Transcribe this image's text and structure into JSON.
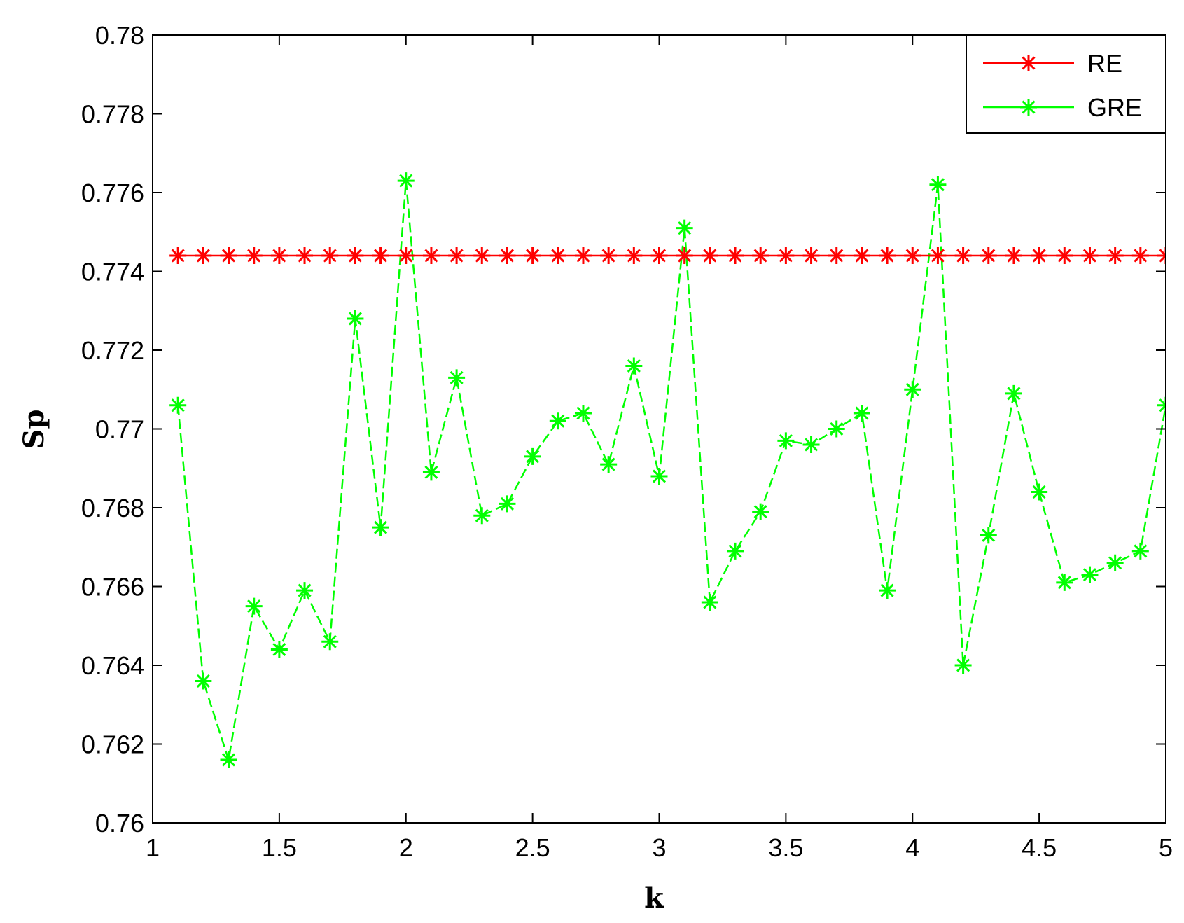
{
  "chart_data": {
    "type": "line",
    "title": "",
    "xlabel": "k",
    "ylabel": "Sp",
    "xlim": [
      1,
      5
    ],
    "ylim": [
      0.76,
      0.78
    ],
    "xticks": [
      "1",
      "1.5",
      "2",
      "2.5",
      "3",
      "3.5",
      "4",
      "4.5",
      "5"
    ],
    "yticks": [
      "0.76",
      "0.762",
      "0.764",
      "0.766",
      "0.768",
      "0.77",
      "0.772",
      "0.774",
      "0.776",
      "0.778",
      "0.78"
    ],
    "grid": false,
    "legend_position": "top-right",
    "x": [
      1.1,
      1.2,
      1.3,
      1.4,
      1.5,
      1.6,
      1.7,
      1.8,
      1.9,
      2.0,
      2.1,
      2.2,
      2.3,
      2.4,
      2.5,
      2.6,
      2.7,
      2.8,
      2.9,
      3.0,
      3.1,
      3.2,
      3.3,
      3.4,
      3.5,
      3.6,
      3.7,
      3.8,
      3.9,
      4.0,
      4.1,
      4.2,
      4.3,
      4.4,
      4.5,
      4.6,
      4.7,
      4.8,
      4.9,
      5.0
    ],
    "series": [
      {
        "name": "RE",
        "color": "#ff0000",
        "line_style": "solid",
        "marker": "star",
        "values": [
          0.7744,
          0.7744,
          0.7744,
          0.7744,
          0.7744,
          0.7744,
          0.7744,
          0.7744,
          0.7744,
          0.7744,
          0.7744,
          0.7744,
          0.7744,
          0.7744,
          0.7744,
          0.7744,
          0.7744,
          0.7744,
          0.7744,
          0.7744,
          0.7744,
          0.7744,
          0.7744,
          0.7744,
          0.7744,
          0.7744,
          0.7744,
          0.7744,
          0.7744,
          0.7744,
          0.7744,
          0.7744,
          0.7744,
          0.7744,
          0.7744,
          0.7744,
          0.7744,
          0.7744,
          0.7744,
          0.7744
        ]
      },
      {
        "name": "GRE",
        "color": "#00ff00",
        "line_style": "dashed",
        "marker": "star",
        "values": [
          0.7706,
          0.7636,
          0.7616,
          0.7655,
          0.7644,
          0.7659,
          0.7646,
          0.7728,
          0.7675,
          0.7763,
          0.7689,
          0.7713,
          0.7678,
          0.7681,
          0.7693,
          0.7702,
          0.7704,
          0.7691,
          0.7716,
          0.7688,
          0.7751,
          0.7656,
          0.7669,
          0.7679,
          0.7697,
          0.7696,
          0.77,
          0.7704,
          0.7659,
          0.771,
          0.7762,
          0.764,
          0.7673,
          0.7709,
          0.7684,
          0.7661,
          0.7663,
          0.7666,
          0.7669,
          0.7706
        ]
      }
    ]
  }
}
